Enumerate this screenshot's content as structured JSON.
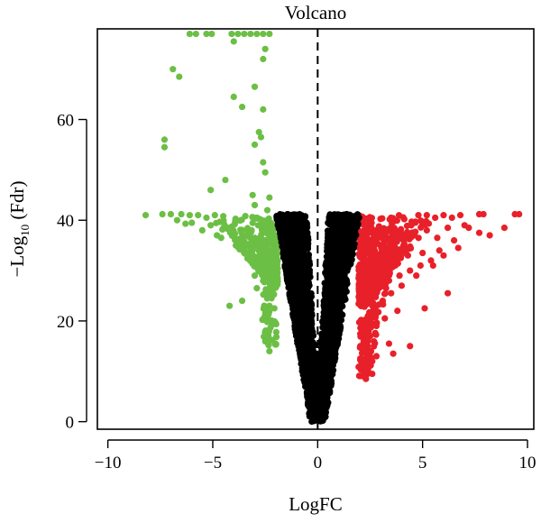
{
  "chart_data": {
    "type": "scatter",
    "title": "Volcano",
    "xlabel": "LogFC",
    "ylabel_main": "−Log",
    "ylabel_sub": "10",
    "ylabel_tail": " (Fdr)",
    "xlim": [
      -10.5,
      10.3
    ],
    "ylim": [
      -1.5,
      78.0
    ],
    "x_ticks": [
      -10,
      -5,
      0,
      5,
      10
    ],
    "x_tick_labels": [
      "−10",
      "−5",
      "0",
      "5",
      "10"
    ],
    "y_ticks": [
      0,
      20,
      40,
      60
    ],
    "y_tick_labels": [
      "0",
      "20",
      "40",
      "60"
    ],
    "threshold_x": 0,
    "grid": false,
    "legend": false,
    "colors": {
      "down": "#6cbf45",
      "not_significant": "#000000",
      "up": "#e8202a",
      "axis": "#000000"
    },
    "series": [
      {
        "key": "down",
        "values": [
          [
            -6.1,
            77
          ],
          [
            -5.8,
            77
          ],
          [
            -5.3,
            77
          ],
          [
            -5.05,
            77
          ],
          [
            -4.1,
            77
          ],
          [
            -3.8,
            77
          ],
          [
            -3.5,
            77
          ],
          [
            -3.2,
            77
          ],
          [
            -2.9,
            77
          ],
          [
            -2.6,
            77
          ],
          [
            -2.3,
            77
          ],
          [
            -4.0,
            75.5
          ],
          [
            -2.5,
            74
          ],
          [
            -2.6,
            72
          ],
          [
            -6.9,
            70
          ],
          [
            -6.6,
            68.5
          ],
          [
            -4.0,
            64.5
          ],
          [
            -3.6,
            62.5
          ],
          [
            -3.0,
            66.5
          ],
          [
            -2.6,
            62
          ],
          [
            -2.8,
            57.5
          ],
          [
            -2.7,
            56.5
          ],
          [
            -7.3,
            56
          ],
          [
            -7.3,
            54.5
          ],
          [
            -3.0,
            55
          ],
          [
            -2.6,
            51.5
          ],
          [
            -4.4,
            48
          ],
          [
            -2.5,
            49.5
          ],
          [
            -5.1,
            46
          ],
          [
            -3.1,
            45
          ],
          [
            -2.3,
            44.5
          ],
          [
            -3.0,
            43
          ],
          [
            -2.4,
            42
          ],
          [
            -8.2,
            41
          ],
          [
            -7.4,
            41.2
          ],
          [
            -7.0,
            41.2
          ],
          [
            -6.5,
            41.2
          ],
          [
            -6.1,
            41
          ],
          [
            -5.7,
            41
          ],
          [
            -5.3,
            40.5
          ],
          [
            -4.9,
            41
          ],
          [
            -4.5,
            40.8
          ],
          [
            -6.0,
            39.5
          ],
          [
            -5.5,
            38
          ],
          [
            -4.8,
            37
          ],
          [
            -4.3,
            38.5
          ],
          [
            -4.0,
            37.5
          ],
          [
            -3.6,
            36
          ],
          [
            -3.3,
            38
          ],
          [
            -3.0,
            36.5
          ],
          [
            -2.8,
            35
          ],
          [
            -2.6,
            34
          ],
          [
            -6.7,
            40
          ],
          [
            -6.3,
            39.3
          ],
          [
            -5.1,
            39
          ],
          [
            -4.6,
            36.5
          ],
          [
            -3.9,
            35
          ],
          [
            -3.5,
            34
          ],
          [
            -3.2,
            33
          ],
          [
            -2.9,
            32
          ],
          [
            -2.7,
            31
          ],
          [
            -2.4,
            30
          ],
          [
            -3.0,
            29
          ],
          [
            -2.6,
            28
          ],
          [
            -2.3,
            27.5
          ],
          [
            -2.9,
            26.5
          ],
          [
            -2.5,
            25.5
          ],
          [
            -2.2,
            24.5
          ],
          [
            -3.6,
            24
          ],
          [
            -2.3,
            23
          ],
          [
            -4.2,
            23
          ],
          [
            -2.5,
            21.5
          ],
          [
            -2.2,
            20
          ],
          [
            -2.4,
            18
          ],
          [
            -2.3,
            14
          ]
        ]
      },
      {
        "key": "up",
        "values": [
          [
            9.4,
            41.2
          ],
          [
            9.6,
            41.2
          ],
          [
            7.7,
            41.2
          ],
          [
            7.9,
            41.2
          ],
          [
            6.8,
            41
          ],
          [
            6.4,
            40.5
          ],
          [
            6.0,
            41
          ],
          [
            5.6,
            40.5
          ],
          [
            5.2,
            41
          ],
          [
            4.8,
            41
          ],
          [
            8.9,
            38.5
          ],
          [
            8.2,
            37
          ],
          [
            7.7,
            37.5
          ],
          [
            7.0,
            39
          ],
          [
            6.2,
            38.5
          ],
          [
            5.7,
            36.5
          ],
          [
            5.2,
            38
          ],
          [
            4.6,
            37
          ],
          [
            4.1,
            36
          ],
          [
            3.6,
            35
          ],
          [
            6.7,
            34.5
          ],
          [
            6.0,
            33
          ],
          [
            5.4,
            32
          ],
          [
            4.9,
            31
          ],
          [
            4.4,
            30
          ],
          [
            3.9,
            29
          ],
          [
            3.4,
            28
          ],
          [
            3.0,
            27
          ],
          [
            7.2,
            38.5
          ],
          [
            6.5,
            36
          ],
          [
            5.8,
            34
          ],
          [
            5.0,
            33.5
          ],
          [
            4.3,
            33
          ],
          [
            3.7,
            31
          ],
          [
            3.2,
            29.5
          ],
          [
            2.8,
            28.5
          ],
          [
            5.5,
            31
          ],
          [
            4.7,
            29
          ],
          [
            4.0,
            27
          ],
          [
            3.5,
            25.5
          ],
          [
            3.1,
            24
          ],
          [
            2.7,
            22.5
          ],
          [
            2.4,
            21
          ],
          [
            2.2,
            19
          ],
          [
            6.2,
            25.5
          ],
          [
            5.1,
            22.5
          ],
          [
            3.8,
            22
          ],
          [
            3.2,
            20.5
          ],
          [
            2.8,
            19
          ],
          [
            2.5,
            17
          ],
          [
            2.3,
            15.5
          ],
          [
            3.4,
            15.5
          ],
          [
            4.4,
            15
          ],
          [
            3.6,
            13.5
          ],
          [
            2.8,
            13
          ],
          [
            2.6,
            12
          ],
          [
            2.4,
            10.5
          ],
          [
            2.6,
            9.5
          ],
          [
            2.3,
            8.5
          ]
        ]
      }
    ]
  }
}
